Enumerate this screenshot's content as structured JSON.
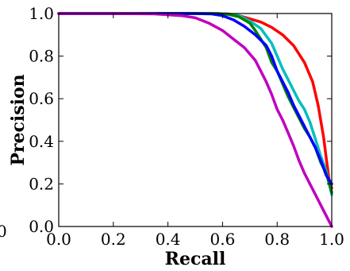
{
  "chart_data": {
    "type": "line",
    "title": "",
    "xlabel": "Recall",
    "ylabel": "Precision",
    "xlim": [
      0,
      1
    ],
    "ylim": [
      0,
      1
    ],
    "grid": false,
    "x_ticks": [
      "0.0",
      "0.2",
      "0.4",
      "0.6",
      "0.8",
      "1.0"
    ],
    "y_ticks": [
      "0.0",
      "0.2",
      "0.4",
      "0.6",
      "0.8",
      "1.0"
    ],
    "stray_label": "0",
    "series": [
      {
        "color": "#ff0000",
        "x": [
          0.0,
          0.3,
          0.5,
          0.58,
          0.62,
          0.66,
          0.7,
          0.74,
          0.78,
          0.82,
          0.86,
          0.9,
          0.93,
          0.95,
          0.97,
          0.98,
          0.99,
          1.0
        ],
        "y": [
          1.0,
          1.0,
          1.0,
          1.0,
          0.998,
          0.99,
          0.975,
          0.96,
          0.935,
          0.9,
          0.85,
          0.77,
          0.68,
          0.57,
          0.42,
          0.32,
          0.22,
          0.18
        ]
      },
      {
        "color": "#00bfbf",
        "x": [
          0.0,
          0.3,
          0.5,
          0.58,
          0.62,
          0.66,
          0.7,
          0.74,
          0.78,
          0.8,
          0.82,
          0.84,
          0.86,
          0.88,
          0.9,
          0.92,
          0.94,
          0.96,
          0.98,
          1.0
        ],
        "y": [
          1.0,
          1.0,
          1.0,
          1.0,
          0.997,
          0.99,
          0.965,
          0.93,
          0.86,
          0.8,
          0.74,
          0.69,
          0.64,
          0.59,
          0.55,
          0.49,
          0.41,
          0.33,
          0.26,
          0.15
        ]
      },
      {
        "color": "#008000",
        "x": [
          0.0,
          0.3,
          0.5,
          0.58,
          0.62,
          0.66,
          0.7,
          0.72,
          0.74,
          0.76,
          0.78,
          0.8,
          0.82,
          0.84,
          0.86,
          0.88,
          0.9,
          0.92,
          0.94,
          0.96,
          0.98,
          1.0
        ],
        "y": [
          1.0,
          1.0,
          1.0,
          1.0,
          0.996,
          0.985,
          0.955,
          0.92,
          0.88,
          0.84,
          0.77,
          0.73,
          0.67,
          0.61,
          0.56,
          0.51,
          0.46,
          0.42,
          0.37,
          0.3,
          0.25,
          0.16
        ]
      },
      {
        "color": "#0000ff",
        "x": [
          0.0,
          0.3,
          0.5,
          0.56,
          0.6,
          0.64,
          0.68,
          0.72,
          0.76,
          0.78,
          0.8,
          0.82,
          0.84,
          0.86,
          0.88,
          0.9,
          0.92,
          0.94,
          0.96,
          0.98,
          1.0
        ],
        "y": [
          1.0,
          1.0,
          1.0,
          0.998,
          0.99,
          0.97,
          0.94,
          0.9,
          0.85,
          0.8,
          0.73,
          0.68,
          0.63,
          0.57,
          0.52,
          0.47,
          0.42,
          0.37,
          0.31,
          0.24,
          0.2
        ]
      },
      {
        "color": "#bf00bf",
        "x": [
          0.0,
          0.2,
          0.35,
          0.45,
          0.5,
          0.55,
          0.6,
          0.64,
          0.68,
          0.72,
          0.74,
          0.76,
          0.78,
          0.8,
          0.82,
          0.84,
          0.86,
          0.88,
          0.9,
          0.92,
          0.94,
          0.96,
          0.98,
          1.0
        ],
        "y": [
          1.0,
          1.0,
          0.998,
          0.99,
          0.98,
          0.955,
          0.92,
          0.88,
          0.84,
          0.78,
          0.73,
          0.68,
          0.62,
          0.55,
          0.5,
          0.44,
          0.38,
          0.31,
          0.25,
          0.2,
          0.15,
          0.1,
          0.05,
          0.0
        ]
      }
    ]
  }
}
